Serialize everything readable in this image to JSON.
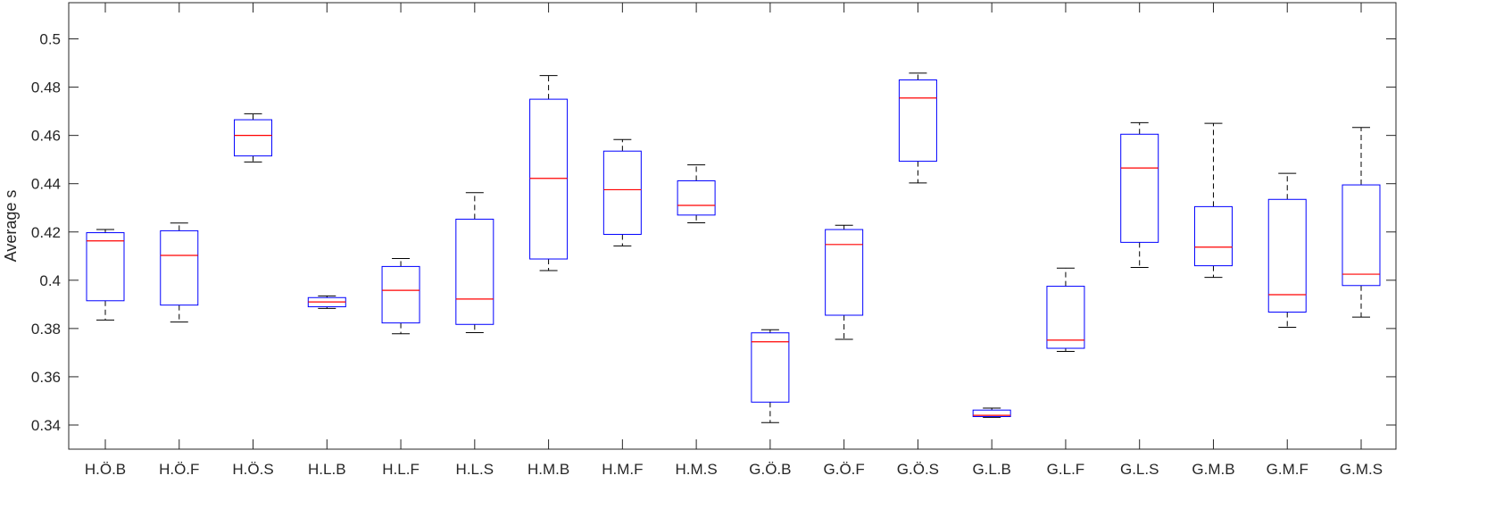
{
  "chart_data": {
    "type": "box",
    "title": "",
    "xlabel": "",
    "ylabel": "Average s",
    "ylim": [
      0.33,
      0.515
    ],
    "yticks": [
      0.34,
      0.36,
      0.38,
      0.4,
      0.42,
      0.44,
      0.46,
      0.48,
      0.5
    ],
    "ytick_labels": [
      "0.34",
      "0.36",
      "0.38",
      "0.4",
      "0.42",
      "0.44",
      "0.46",
      "0.48",
      "0.5"
    ],
    "grid": false,
    "colors": {
      "box": "#0000ff",
      "median": "#ff0000",
      "whisker": "#000000",
      "axis": "#262626"
    },
    "categories": [
      "H.Ö.B",
      "H.Ö.F",
      "H.Ö.S",
      "H.L.B",
      "H.L.F",
      "H.L.S",
      "H.M.B",
      "H.M.F",
      "H.M.S",
      "G.Ö.B",
      "G.Ö.F",
      "G.Ö.S",
      "G.L.B",
      "G.L.F",
      "G.L.S",
      "G.M.B",
      "G.M.F",
      "G.M.S"
    ],
    "boxes": [
      {
        "min": 0.3835,
        "q1": 0.3915,
        "median": 0.4163,
        "q3": 0.4197,
        "max": 0.421
      },
      {
        "min": 0.3827,
        "q1": 0.3897,
        "median": 0.4103,
        "q3": 0.4205,
        "max": 0.4237
      },
      {
        "min": 0.449,
        "q1": 0.4515,
        "median": 0.46,
        "q3": 0.4665,
        "max": 0.469
      },
      {
        "min": 0.3883,
        "q1": 0.389,
        "median": 0.391,
        "q3": 0.3928,
        "max": 0.3935
      },
      {
        "min": 0.3778,
        "q1": 0.3823,
        "median": 0.3958,
        "q3": 0.4057,
        "max": 0.409
      },
      {
        "min": 0.3783,
        "q1": 0.3817,
        "median": 0.3922,
        "q3": 0.4253,
        "max": 0.4363
      },
      {
        "min": 0.404,
        "q1": 0.4088,
        "median": 0.4422,
        "q3": 0.475,
        "max": 0.4848
      },
      {
        "min": 0.4142,
        "q1": 0.419,
        "median": 0.4375,
        "q3": 0.4535,
        "max": 0.4583
      },
      {
        "min": 0.4238,
        "q1": 0.427,
        "median": 0.431,
        "q3": 0.4412,
        "max": 0.4478
      },
      {
        "min": 0.341,
        "q1": 0.3495,
        "median": 0.3745,
        "q3": 0.3782,
        "max": 0.3795
      },
      {
        "min": 0.3755,
        "q1": 0.3855,
        "median": 0.4148,
        "q3": 0.421,
        "max": 0.4228
      },
      {
        "min": 0.4403,
        "q1": 0.4493,
        "median": 0.4755,
        "q3": 0.483,
        "max": 0.4858
      },
      {
        "min": 0.3432,
        "q1": 0.3435,
        "median": 0.344,
        "q3": 0.3462,
        "max": 0.347
      },
      {
        "min": 0.3705,
        "q1": 0.3718,
        "median": 0.3752,
        "q3": 0.3975,
        "max": 0.405
      },
      {
        "min": 0.4053,
        "q1": 0.4157,
        "median": 0.4465,
        "q3": 0.4605,
        "max": 0.4653
      },
      {
        "min": 0.4012,
        "q1": 0.406,
        "median": 0.4137,
        "q3": 0.4305,
        "max": 0.465
      },
      {
        "min": 0.3805,
        "q1": 0.3868,
        "median": 0.394,
        "q3": 0.4335,
        "max": 0.4443
      },
      {
        "min": 0.3847,
        "q1": 0.3978,
        "median": 0.4025,
        "q3": 0.4395,
        "max": 0.4633
      }
    ]
  }
}
